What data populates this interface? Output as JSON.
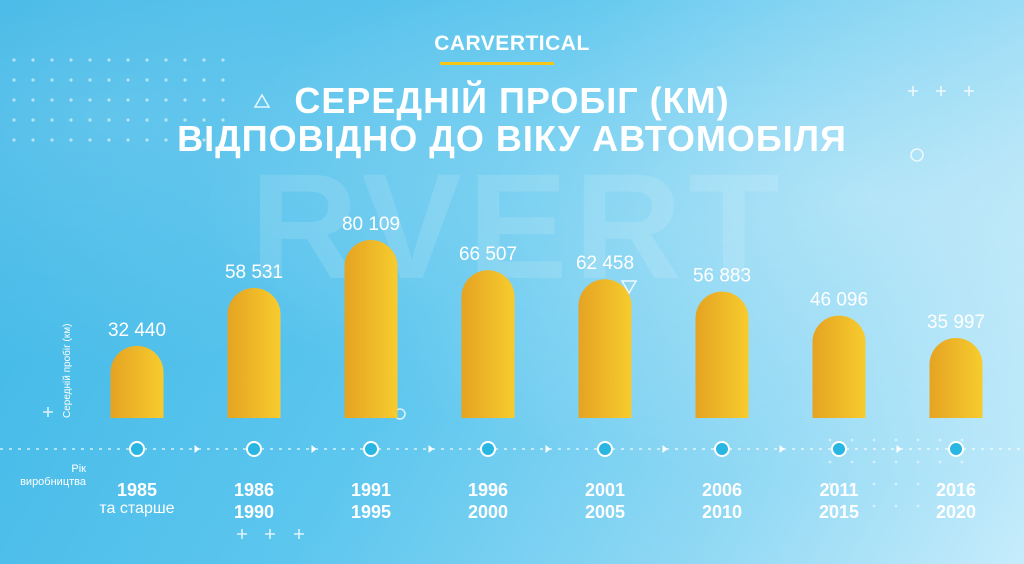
{
  "brand": {
    "logo_text": "CARVERTICAL",
    "watermark": "RVERT"
  },
  "colors": {
    "bar_start": "#e5a322",
    "bar_end": "#f7cc2e",
    "dot": "#29b6e3",
    "dot_ring": "#ffffff",
    "accent": "#f5c518"
  },
  "chart_data": {
    "type": "bar",
    "title": "СЕРЕДНІЙ ПРОБІГ (КМ)",
    "subtitle": "ВІДПОВІДНО ДО ВІКУ АВТОМОБІЛЯ",
    "ylabel": "Середній пробіг (км)",
    "xlabel_line1": "Рік",
    "xlabel_line2": "виробництва",
    "categories": [
      {
        "line1": "1985",
        "line2": "та старше"
      },
      {
        "line1": "1986",
        "line2": "1990"
      },
      {
        "line1": "1991",
        "line2": "1995"
      },
      {
        "line1": "1996",
        "line2": "2000"
      },
      {
        "line1": "2001",
        "line2": "2005"
      },
      {
        "line1": "2006",
        "line2": "2010"
      },
      {
        "line1": "2011",
        "line2": "2015"
      },
      {
        "line1": "2016",
        "line2": "2020"
      }
    ],
    "values": [
      32440,
      58531,
      80109,
      66507,
      62458,
      56883,
      46096,
      35997
    ],
    "value_labels": [
      "32 440",
      "58 531",
      "80 109",
      "66 507",
      "62 458",
      "56 883",
      "46 096",
      "35 997"
    ],
    "ylim": [
      0,
      85000
    ],
    "grid": false
  }
}
